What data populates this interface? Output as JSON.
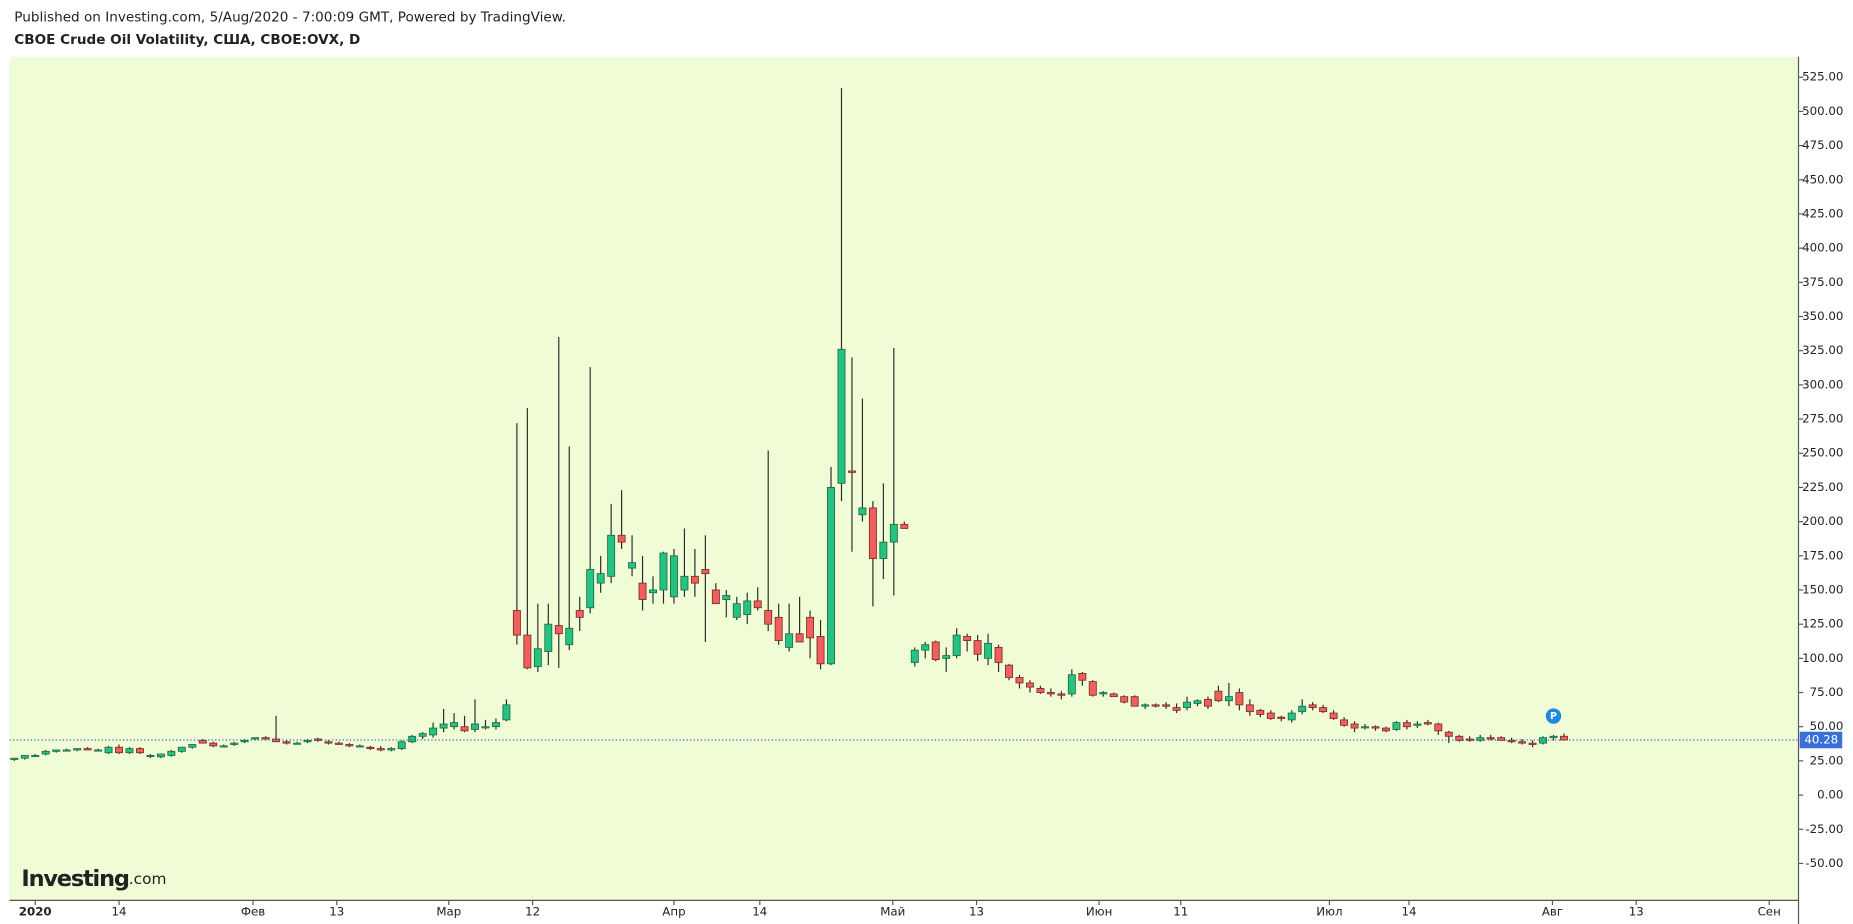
{
  "header": {
    "published": "Published on Investing.com, 5/Aug/2020 - 7:00:09 GMT, Powered by TradingView.",
    "symbol": "CBOE Crude Oil Volatility, США, CBOE:OVX, D"
  },
  "logo": {
    "name": "Investing",
    "suffix": ".com"
  },
  "chart_data": {
    "type": "candlestick",
    "up_color": "#26c281",
    "down_color": "#ef5f5b",
    "background": "#f0fcd6",
    "marker": "P",
    "series": {
      "open": [
        26,
        27,
        29,
        30,
        32,
        33,
        33,
        34,
        33,
        31,
        35,
        31,
        34,
        29,
        28,
        29,
        32,
        35,
        40,
        38,
        36,
        37,
        39,
        41,
        42,
        41,
        39,
        38,
        39,
        41,
        39,
        38,
        37,
        36,
        35,
        34,
        33,
        34,
        39,
        43,
        44,
        49,
        50,
        50,
        48,
        50,
        50,
        55,
        135,
        117,
        94,
        105,
        124,
        110,
        135,
        137,
        155,
        160,
        190,
        166,
        155,
        148,
        150,
        145,
        150,
        160,
        165,
        150,
        143,
        130,
        132,
        142,
        135,
        130,
        108,
        118,
        130,
        116,
        96,
        228,
        237,
        205,
        210,
        173,
        185,
        198,
        97,
        106,
        112,
        100,
        102,
        116,
        113,
        100,
        108,
        95,
        86,
        82,
        78,
        75,
        74,
        74,
        89,
        83,
        74,
        74,
        72,
        72,
        65,
        66,
        66,
        64,
        64,
        67,
        70,
        76,
        69,
        75,
        66,
        62,
        60,
        57,
        55,
        61,
        66,
        64,
        60,
        55,
        52,
        50,
        50,
        49,
        48,
        53,
        51,
        53,
        52,
        46,
        43,
        41,
        40,
        42,
        42,
        40,
        39,
        38,
        38,
        42,
        43
      ],
      "high": [
        27,
        29,
        30,
        33,
        33,
        34,
        34,
        35,
        34,
        36,
        37,
        35,
        35,
        30,
        30,
        33,
        35,
        37,
        41,
        39,
        37,
        39,
        41,
        42,
        43,
        58,
        40,
        39,
        41,
        42,
        40,
        39,
        38,
        37,
        36,
        36,
        35,
        40,
        44,
        46,
        53,
        63,
        60,
        58,
        70,
        55,
        56,
        70,
        272,
        283,
        140,
        140,
        335,
        255,
        145,
        313,
        175,
        213,
        223,
        190,
        175,
        160,
        178,
        180,
        195,
        180,
        190,
        155,
        150,
        145,
        148,
        152,
        252,
        140,
        140,
        145,
        135,
        128,
        240,
        517,
        320,
        290,
        215,
        228,
        327,
        200,
        108,
        112,
        113,
        108,
        122,
        118,
        117,
        118,
        110,
        96,
        88,
        84,
        80,
        78,
        76,
        92,
        90,
        84,
        76,
        75,
        73,
        73,
        67,
        67,
        68,
        67,
        72,
        70,
        72,
        80,
        82,
        78,
        70,
        63,
        62,
        58,
        62,
        70,
        68,
        66,
        62,
        57,
        54,
        52,
        51,
        50,
        54,
        55,
        54,
        55,
        53,
        47,
        44,
        43,
        44,
        44,
        43,
        42,
        41,
        40,
        43,
        44,
        45
      ],
      "low": [
        25,
        26,
        28,
        29,
        31,
        32,
        32,
        33,
        32,
        30,
        30,
        30,
        30,
        27,
        27,
        28,
        31,
        34,
        38,
        35,
        35,
        36,
        38,
        40,
        40,
        39,
        37,
        37,
        38,
        39,
        37,
        37,
        35,
        35,
        33,
        32,
        32,
        33,
        38,
        41,
        42,
        46,
        48,
        46,
        46,
        48,
        48,
        54,
        110,
        92,
        90,
        95,
        93,
        106,
        120,
        133,
        148,
        155,
        180,
        160,
        135,
        140,
        140,
        140,
        145,
        145,
        112,
        140,
        130,
        128,
        125,
        135,
        120,
        110,
        105,
        112,
        100,
        92,
        95,
        215,
        178,
        200,
        138,
        158,
        146,
        195,
        94,
        100,
        98,
        90,
        100,
        105,
        98,
        95,
        90,
        84,
        78,
        75,
        74,
        72,
        70,
        72,
        80,
        72,
        72,
        72,
        67,
        65,
        63,
        64,
        63,
        60,
        62,
        65,
        63,
        68,
        65,
        62,
        58,
        57,
        55,
        54,
        53,
        59,
        62,
        60,
        55,
        50,
        46,
        48,
        47,
        46,
        47,
        48,
        49,
        51,
        44,
        38,
        39,
        39,
        39,
        40,
        40,
        38,
        37,
        35,
        37,
        40,
        40
      ],
      "close": [
        27,
        29,
        29,
        32,
        33,
        33,
        34,
        33,
        33,
        35,
        31,
        34,
        31,
        29,
        30,
        32,
        35,
        37,
        38,
        36,
        36,
        38,
        40,
        42,
        41,
        39,
        38,
        38,
        40,
        40,
        38,
        37,
        36,
        36,
        34,
        33,
        34,
        39,
        43,
        45,
        49,
        52,
        53,
        47,
        52,
        50,
        53,
        66,
        117,
        93,
        107,
        125,
        118,
        122,
        130,
        165,
        162,
        190,
        185,
        170,
        143,
        150,
        177,
        175,
        160,
        155,
        162,
        140,
        146,
        140,
        142,
        137,
        125,
        113,
        118,
        112,
        115,
        96,
        225,
        326,
        236,
        210,
        173,
        185,
        198,
        195,
        106,
        110,
        99,
        102,
        117,
        113,
        103,
        111,
        97,
        86,
        82,
        79,
        75,
        74,
        73,
        88,
        84,
        73,
        75,
        72,
        68,
        65,
        66,
        65,
        65,
        62,
        68,
        69,
        65,
        69,
        72,
        66,
        61,
        59,
        56,
        56,
        60,
        65,
        64,
        61,
        56,
        51,
        49,
        50,
        49,
        47,
        53,
        50,
        52,
        52,
        47,
        43,
        40,
        40,
        42,
        41,
        40,
        39,
        38,
        37,
        42,
        43,
        40.28
      ]
    },
    "xlim": [
      -0.45,
      170.4
    ],
    "xticks": [
      {
        "value": 2,
        "label": "2020"
      },
      {
        "value": 10,
        "label": "14"
      },
      {
        "value": 22.8,
        "label": "Фев"
      },
      {
        "value": 30.8,
        "label": "13"
      },
      {
        "value": 41.5,
        "label": "Мар"
      },
      {
        "value": 49.5,
        "label": "12"
      },
      {
        "value": 63,
        "label": "Апр"
      },
      {
        "value": 71.2,
        "label": "14"
      },
      {
        "value": 83.9,
        "label": "Май"
      },
      {
        "value": 91.9,
        "label": "13"
      },
      {
        "value": 103.6,
        "label": "Июн"
      },
      {
        "value": 111.4,
        "label": "11"
      },
      {
        "value": 125.6,
        "label": "Июл"
      },
      {
        "value": 133.2,
        "label": "14"
      },
      {
        "value": 146.9,
        "label": "Авг"
      },
      {
        "value": 154.9,
        "label": "13"
      },
      {
        "value": 167.6,
        "label": "Сен"
      }
    ],
    "ylim": [
      -77,
      540
    ],
    "yticks": [
      {
        "value": 525,
        "label": "525.00"
      },
      {
        "value": 500,
        "label": "500.00"
      },
      {
        "value": 475,
        "label": "475.00"
      },
      {
        "value": 450,
        "label": "450.00"
      },
      {
        "value": 425,
        "label": "425.00"
      },
      {
        "value": 400,
        "label": "400.00"
      },
      {
        "value": 375,
        "label": "375.00"
      },
      {
        "value": 350,
        "label": "350.00"
      },
      {
        "value": 325,
        "label": "325.00"
      },
      {
        "value": 300,
        "label": "300.00"
      },
      {
        "value": 275,
        "label": "275.00"
      },
      {
        "value": 250,
        "label": "250.00"
      },
      {
        "value": 225,
        "label": "225.00"
      },
      {
        "value": 200,
        "label": "200.00"
      },
      {
        "value": 175,
        "label": "175.00"
      },
      {
        "value": 150,
        "label": "150.00"
      },
      {
        "value": 125,
        "label": "125.00"
      },
      {
        "value": 100,
        "label": "100.00"
      },
      {
        "value": 75,
        "label": "75.00"
      },
      {
        "value": 50,
        "label": "50.00"
      },
      {
        "value": 25,
        "label": "25.00"
      },
      {
        "value": 0,
        "label": "0.00"
      },
      {
        "value": -25,
        "label": "-25.00"
      },
      {
        "value": -50,
        "label": "-50.00"
      }
    ]
  }
}
